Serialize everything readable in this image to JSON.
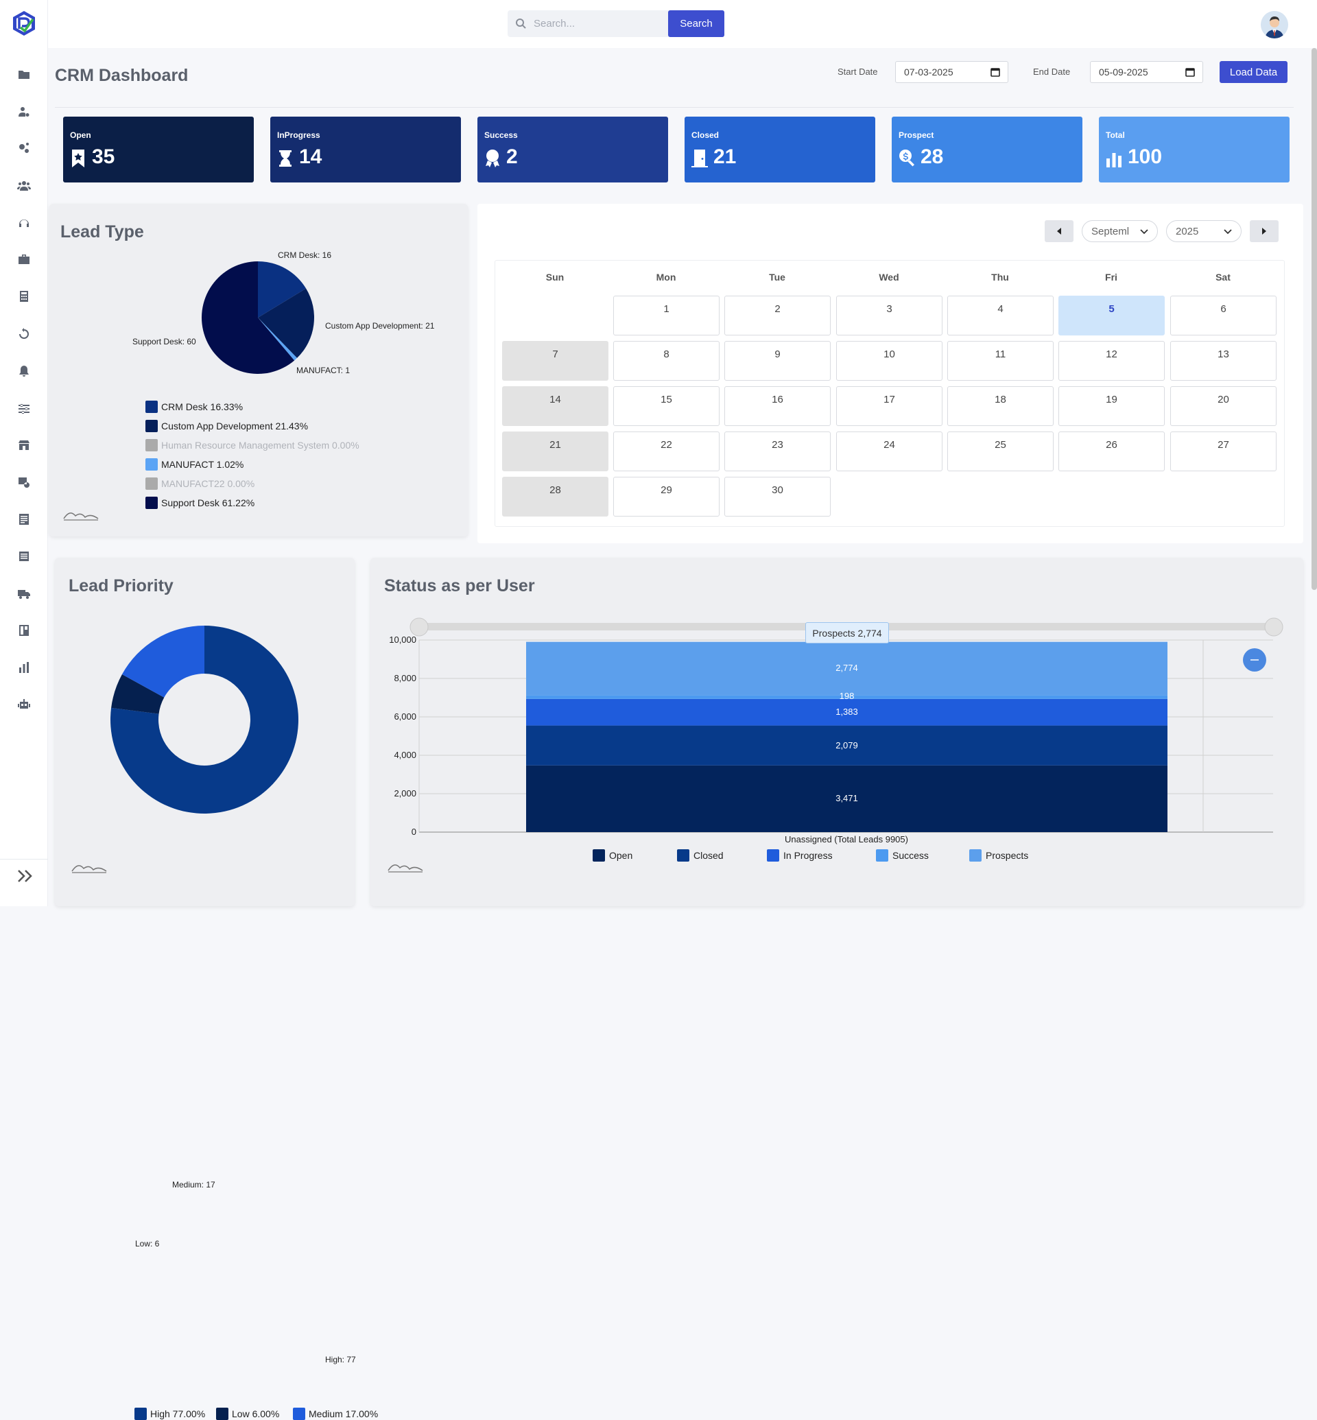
{
  "header": {
    "search_placeholder": "Search...",
    "search_button": "Search",
    "page_title": "CRM Dashboard",
    "start_date_label": "Start Date",
    "start_date": "07-03-2025",
    "end_date_label": "End Date",
    "end_date": "05-09-2025",
    "load_button": "Load Data"
  },
  "sidebar": {
    "icons": [
      "folder-icon",
      "user-settings-icon",
      "gears-icon",
      "users-icon",
      "headset-icon",
      "briefcase-icon",
      "calculator-icon",
      "sync-icon",
      "bell-icon",
      "sliders-icon",
      "store-icon",
      "clock-icon",
      "report-icon",
      "list-icon",
      "truck-icon",
      "grid-icon",
      "bar-chart-icon",
      "robot-icon"
    ]
  },
  "stats": [
    {
      "label": "Open",
      "value": "35",
      "icon": "bookmark-icon",
      "color": "#0b1f47"
    },
    {
      "label": "InProgress",
      "value": "14",
      "icon": "hourglass-icon",
      "color": "#142c6e"
    },
    {
      "label": "Success",
      "value": "2",
      "icon": "award-icon",
      "color": "#1f3d92"
    },
    {
      "label": "Closed",
      "value": "21",
      "icon": "door-icon",
      "color": "#2563d0"
    },
    {
      "label": "Prospect",
      "value": "28",
      "icon": "search-dollar-icon",
      "color": "#3d86e6"
    },
    {
      "label": "Total",
      "value": "100",
      "icon": "bar-chart-icon",
      "color": "#5a9ef0"
    }
  ],
  "lead_type": {
    "title": "Lead Type",
    "chart_data": {
      "type": "pie",
      "slices": [
        {
          "name": "CRM Desk",
          "value": 16,
          "label": "CRM Desk: 16",
          "color": "#0a3182"
        },
        {
          "name": "Custom App Development",
          "value": 21,
          "label": "Custom App Development: 21",
          "color": "#051f5a"
        },
        {
          "name": "MANUFACT",
          "value": 1,
          "label": "MANUFACT: 1",
          "color": "#5ba4f5"
        },
        {
          "name": "Support Desk",
          "value": 60,
          "label": "Support Desk: 60",
          "color": "#020d4c"
        }
      ],
      "legend": [
        {
          "text": "CRM Desk 16.33%",
          "color": "#0a3182",
          "dim": false
        },
        {
          "text": "Custom App Development 21.43%",
          "color": "#051f5a",
          "dim": false
        },
        {
          "text": "Human Resource Management System 0.00%",
          "color": "#aaaaaa",
          "dim": true
        },
        {
          "text": "MANUFACT 1.02%",
          "color": "#5ba4f5",
          "dim": false
        },
        {
          "text": "MANUFACT22 0.00%",
          "color": "#aaaaaa",
          "dim": true
        },
        {
          "text": "Support Desk 61.22%",
          "color": "#020d4c",
          "dim": false
        }
      ]
    }
  },
  "calendar": {
    "month": "Septeml",
    "year": "2025",
    "weekdays": [
      "Sun",
      "Mon",
      "Tue",
      "Wed",
      "Thu",
      "Fri",
      "Sat"
    ],
    "start_weekday": 1,
    "days": 30,
    "today": 5
  },
  "lead_priority": {
    "title": "Lead Priority",
    "chart_data": {
      "type": "pie",
      "donut": true,
      "slices": [
        {
          "name": "High",
          "value": 77,
          "label": "High: 77",
          "color": "#073a8a"
        },
        {
          "name": "Low",
          "value": 6,
          "label": "Low: 6",
          "color": "#05204f"
        },
        {
          "name": "Medium",
          "value": 17,
          "label": "Medium: 17",
          "color": "#1f5cdc"
        }
      ],
      "legend": [
        {
          "text": "High 77.00%",
          "color": "#073a8a"
        },
        {
          "text": "Low 6.00%",
          "color": "#05204f"
        },
        {
          "text": "Medium 17.00%",
          "color": "#1f5cdc"
        }
      ]
    }
  },
  "status_user": {
    "title": "Status as per User",
    "tooltip": "Prospects 2,774",
    "chart_data": {
      "type": "bar",
      "stacked": true,
      "categories": [
        "Unassigned (Total Leads 9905)"
      ],
      "ylim": [
        0,
        10000
      ],
      "yticks": [
        "0",
        "2,000",
        "4,000",
        "6,000",
        "8,000",
        "10,000"
      ],
      "series": [
        {
          "name": "Open",
          "values": [
            3471
          ],
          "label": "3,471",
          "color": "#03245c"
        },
        {
          "name": "Closed",
          "values": [
            2079
          ],
          "label": "2,079",
          "color": "#073a8a"
        },
        {
          "name": "In Progress",
          "values": [
            1383
          ],
          "label": "1,383",
          "color": "#1f5cdc"
        },
        {
          "name": "Success",
          "values": [
            198
          ],
          "label": "198",
          "color": "#4c9af0"
        },
        {
          "name": "Prospects",
          "values": [
            2774
          ],
          "label": "2,774",
          "color": "#5c9fec"
        }
      ]
    }
  }
}
